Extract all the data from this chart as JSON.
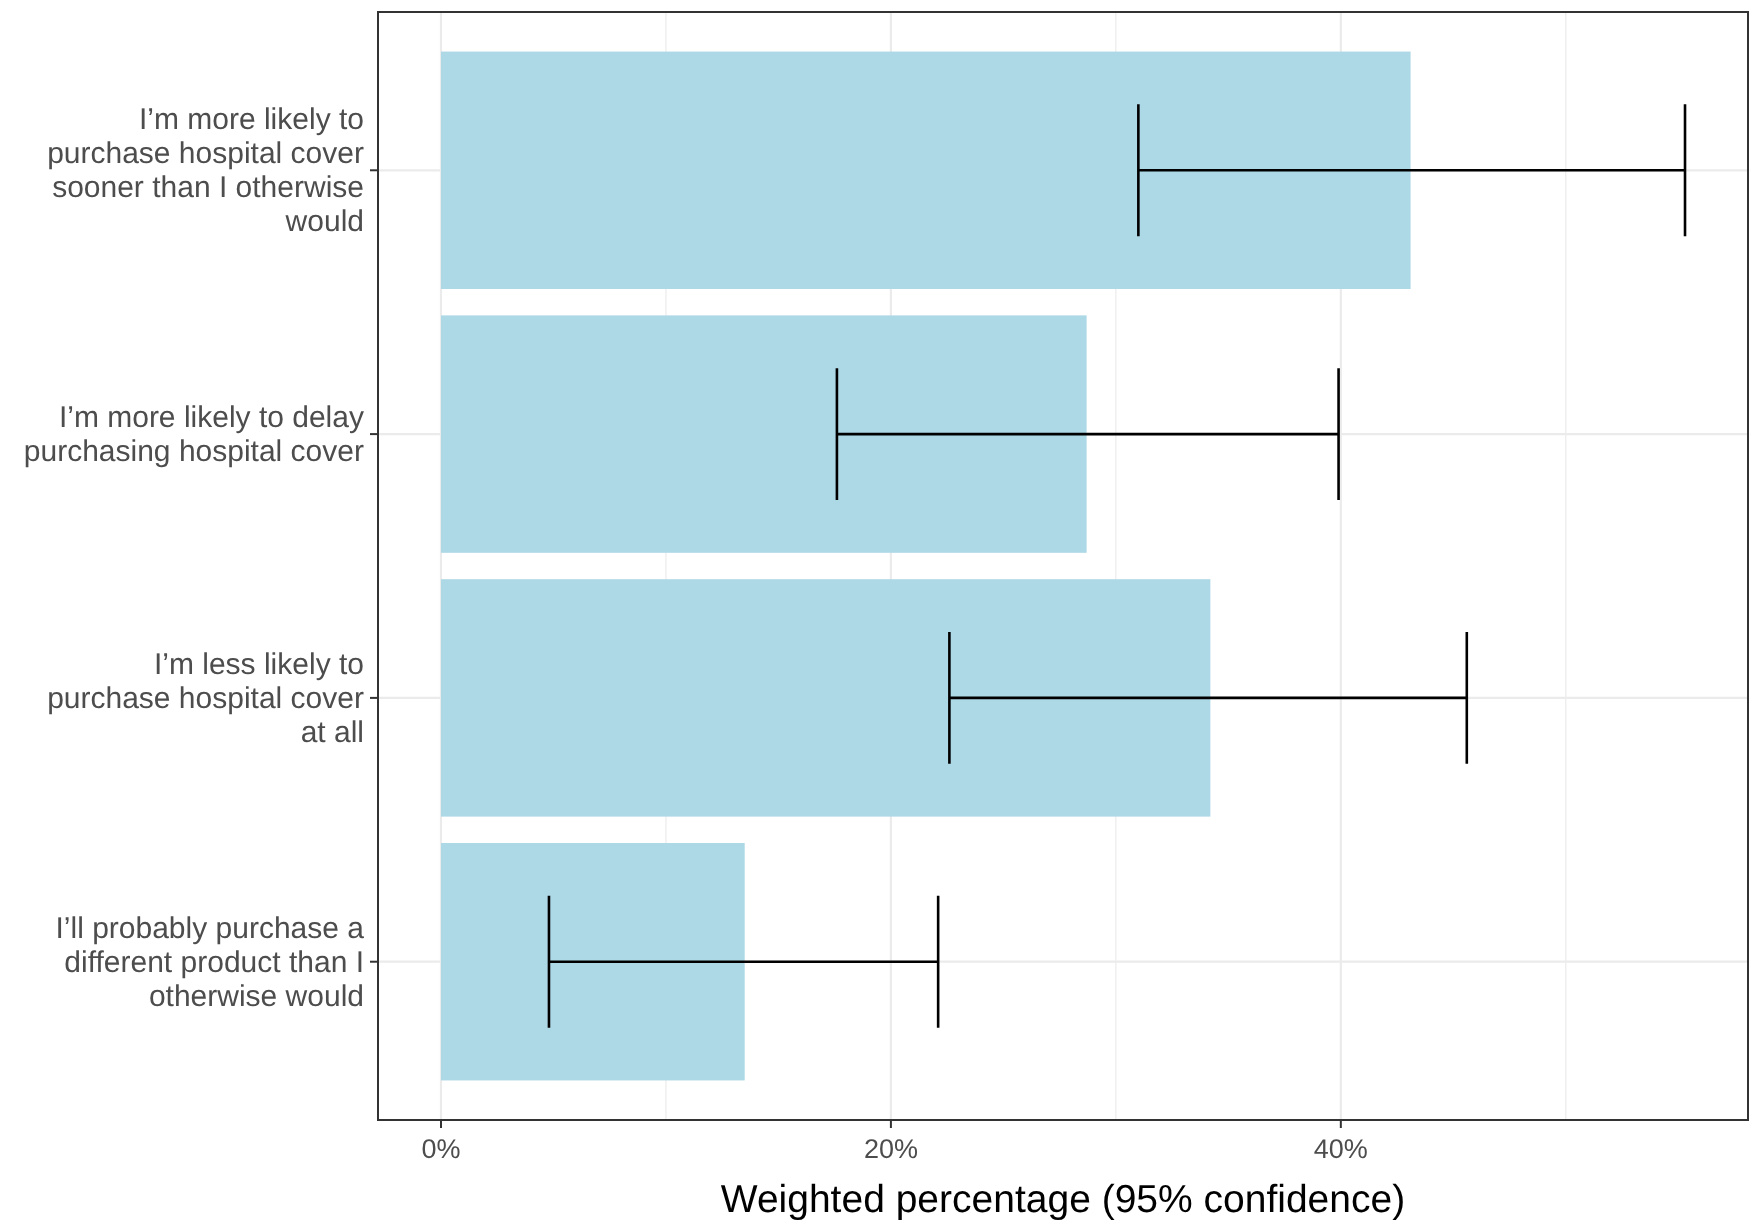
{
  "chart_data": {
    "type": "bar",
    "orientation": "horizontal",
    "categories": [
      "I’m more likely to\npurchase hospital cover\nsooner than I otherwise\nwould",
      "I’m more likely to delay\npurchasing hospital cover",
      "I’m less likely to\npurchase hospital cover\nat all",
      "I’ll probably purchase a\ndifferent product than I\notherwise would"
    ],
    "values": [
      43.1,
      28.7,
      34.2,
      13.5
    ],
    "color": "#add8e6",
    "errors": [
      [
        31.0,
        55.3
      ],
      [
        17.6,
        39.9
      ],
      [
        22.6,
        45.6
      ],
      [
        4.8,
        22.1
      ]
    ],
    "xlabel": "Weighted percentage (95% confidence)",
    "xlim": [
      -2.8,
      58.1
    ],
    "xticks": [
      {
        "value": 0,
        "label": "0%"
      },
      {
        "value": 10,
        "label": null
      },
      {
        "value": 20,
        "label": "20%"
      },
      {
        "value": 30,
        "label": null
      },
      {
        "value": 40,
        "label": "40%"
      },
      {
        "value": 50,
        "label": null
      }
    ],
    "grid": true
  }
}
